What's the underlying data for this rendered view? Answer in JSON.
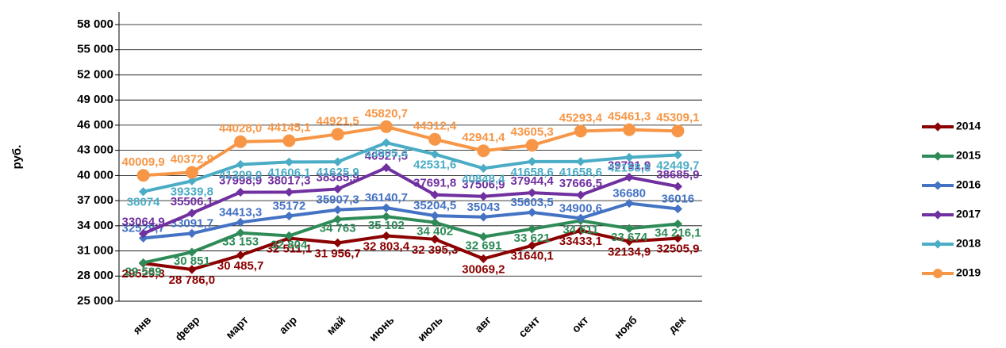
{
  "chart_data": {
    "type": "line",
    "y_label": "руб.",
    "categories": [
      "янв",
      "февр",
      "март",
      "апр",
      "май",
      "июнь",
      "июль",
      "авг",
      "сент",
      "окт",
      "нояб",
      "дек"
    ],
    "ylim": [
      25000,
      58000
    ],
    "yticks": [
      {
        "value": 25000,
        "label": "25 000"
      },
      {
        "value": 28000,
        "label": "28 000"
      },
      {
        "value": 31000,
        "label": "31 000"
      },
      {
        "value": 34000,
        "label": "34 000"
      },
      {
        "value": 37000,
        "label": "37 000"
      },
      {
        "value": 40000,
        "label": "40 000"
      },
      {
        "value": 43000,
        "label": "43 000"
      },
      {
        "value": 46000,
        "label": "46 000"
      },
      {
        "value": 49000,
        "label": "49 000"
      },
      {
        "value": 52000,
        "label": "52 000"
      },
      {
        "value": 55000,
        "label": "55 000"
      },
      {
        "value": 58000,
        "label": "58 000"
      }
    ],
    "grid": true,
    "legend": "right",
    "series": [
      {
        "name": "2014",
        "color": "#8b0000",
        "values": [
          29529.3,
          28786.0,
          30485.7,
          32511.1,
          31956.7,
          32803.4,
          32395.3,
          30069.2,
          31640.1,
          33433.1,
          32134.9,
          32505.9
        ],
        "value_labels": [
          "29529,3",
          "28 786,0",
          "30 485,7",
          "32 511,1",
          "31 956,7",
          "32 803,4",
          "32 395,3",
          "30069,2",
          "31640,1",
          "33433,1",
          "32134,9",
          "32505,9"
        ]
      },
      {
        "name": "2015",
        "color": "#2e8b57",
        "values": [
          29589,
          30851,
          33153,
          32804,
          34763,
          35102,
          34402,
          32691,
          33621,
          34611,
          33674,
          34216.1
        ],
        "value_labels": [
          "29 589",
          "30 851",
          "33 153",
          "32 804",
          "34 763",
          "35 102",
          "34 402",
          "32 691",
          "33 621",
          "34 611",
          "33 674",
          "34 216,1"
        ]
      },
      {
        "name": "2016",
        "color": "#4472c4",
        "values": [
          32529.7,
          33091.7,
          34413.3,
          35172,
          35907.3,
          36140.7,
          35204.5,
          35043,
          35603.5,
          34900.6,
          36680,
          36016
        ],
        "value_labels": [
          "32529,7",
          "33091,7",
          "34413,3",
          "35172",
          "35907,3",
          "36140,7",
          "35204,5",
          "35043",
          "35603,5",
          "34900,6",
          "36680",
          "36016"
        ]
      },
      {
        "name": "2017",
        "color": "#7030a0",
        "values": [
          33064.9,
          35506.1,
          37998.9,
          38017.3,
          38385.9,
          40927.5,
          37691.8,
          37506.9,
          37944.4,
          37666.5,
          39791.9,
          38685.9
        ],
        "value_labels": [
          "33064,9",
          "35506,1",
          "37998,9",
          "38017,3",
          "38385,9",
          "40927,5",
          "37691,8",
          "37506,9",
          "37944,4",
          "37666,5",
          "39791,9",
          "38685,9"
        ]
      },
      {
        "name": "2018",
        "color": "#4bacc6",
        "values": [
          38074,
          39339.8,
          41309.0,
          41606.1,
          41625.9,
          43905.4,
          42531.6,
          40848.4,
          41658.6,
          41658.6,
          42158.6,
          42449.7
        ],
        "value_labels": [
          "38074",
          "39339,8",
          "41309,0",
          "41606,1",
          "41625,9",
          "43905,4",
          "42531,6",
          "40848,4",
          "41658,6",
          "41658,6",
          "42158,6",
          "42449,7"
        ]
      },
      {
        "name": "2019",
        "color": "#f79646",
        "values": [
          40009.9,
          40372.9,
          44028.0,
          44145.1,
          44921.5,
          45820.7,
          44312.4,
          42941.4,
          43605.3,
          45293.4,
          45461.3,
          45309.1
        ],
        "value_labels": [
          "40009,9",
          "40372,9",
          "44028,0",
          "44145,1",
          "44921,5",
          "45820,7",
          "44312,4",
          "42941,4",
          "43605,3",
          "45293,4",
          "45461,3",
          "45309,1"
        ]
      }
    ]
  }
}
